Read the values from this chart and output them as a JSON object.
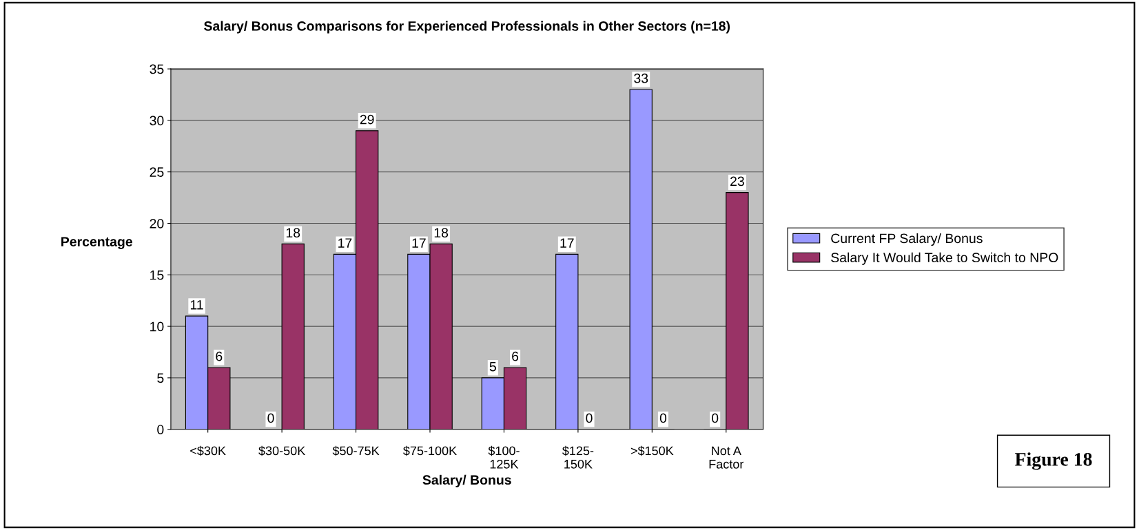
{
  "chart_data": {
    "type": "bar",
    "title": "Salary/ Bonus Comparisons for Experienced Professionals in Other Sectors (n=18)",
    "xlabel": "Salary/ Bonus",
    "ylabel": "Percentage",
    "categories": [
      "<$30K",
      "$30-50K",
      "$50-75K",
      "$75-100K",
      "$100-\n125K",
      "$125-\n150K",
      ">$150K",
      "Not A\nFactor"
    ],
    "series": [
      {
        "name": "Current FP Salary/ Bonus",
        "color": "#9999ff",
        "values": [
          11,
          0,
          17,
          17,
          5,
          17,
          33,
          0
        ]
      },
      {
        "name": "Salary It Would Take to Switch to NPO",
        "color": "#993366",
        "values": [
          6,
          18,
          29,
          18,
          6,
          0,
          0,
          23
        ]
      }
    ],
    "ylim": [
      0,
      35
    ],
    "yticks": [
      0,
      5,
      10,
      15,
      20,
      25,
      30,
      35
    ],
    "grid": "y",
    "legend": "right",
    "data_labels": true,
    "annotations": [
      "Figure 18"
    ]
  }
}
